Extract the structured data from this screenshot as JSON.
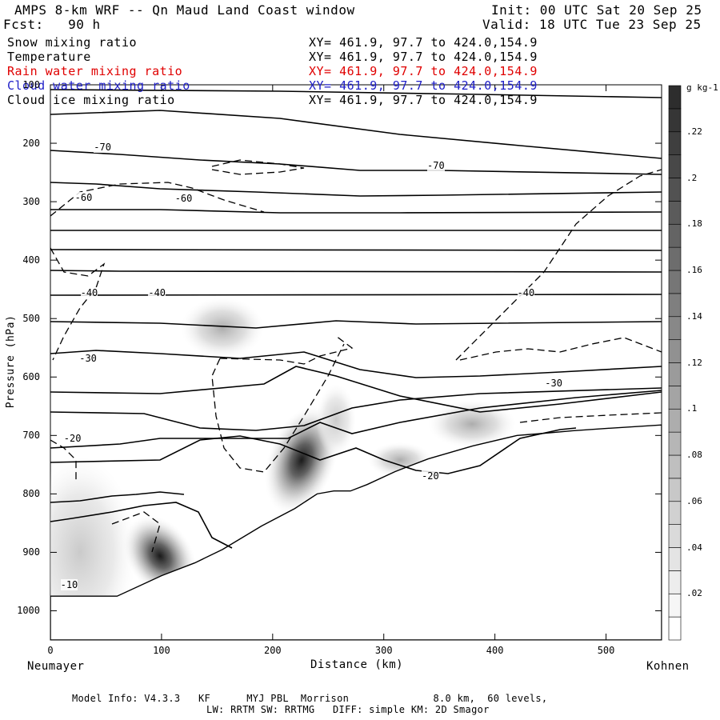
{
  "header": {
    "title": "AMPS 8-km WRF -- Qn Maud Land Coast window",
    "init": "Init: 00 UTC Sat 20 Sep 25",
    "fcst": "Fcst:   90 h",
    "valid": "Valid: 18 UTC Tue 23 Sep 25"
  },
  "legend": [
    {
      "label": "Snow mixing ratio",
      "xy": "XY= 461.9, 97.7 to 424.0,154.9",
      "color": "#000000"
    },
    {
      "label": "Temperature",
      "xy": "XY= 461.9, 97.7 to 424.0,154.9",
      "color": "#000000"
    },
    {
      "label": "Rain water mixing ratio",
      "xy": "XY= 461.9, 97.7 to 424.0,154.9",
      "color": "#e00000"
    },
    {
      "label": "Cloud water mixing ratio",
      "xy": "XY= 461.9, 97.7 to 424.0,154.9",
      "color": "#2020c8"
    },
    {
      "label": "Cloud ice mixing ratio",
      "xy": "XY= 461.9, 97.7 to 424.0,154.9",
      "color": "#000000"
    }
  ],
  "chart_data": {
    "type": "cross-section contour",
    "xlabel": "Distance (km)",
    "ylabel": "Pressure (hPa)",
    "xlim": [
      0,
      550
    ],
    "ylim": [
      1050,
      100
    ],
    "x_ticks": [
      0,
      100,
      200,
      300,
      400,
      500
    ],
    "y_ticks": [
      100,
      200,
      300,
      400,
      500,
      600,
      700,
      800,
      900,
      1000
    ],
    "x_endpoint_labels": {
      "left": "Neumayer",
      "right": "Kohnen"
    },
    "temperature_contour_labels": [
      {
        "text": "-70",
        "x": 47,
        "p": 207
      },
      {
        "text": "-70",
        "x": 347,
        "p": 238
      },
      {
        "text": "-60",
        "x": 30,
        "p": 293
      },
      {
        "text": "-60",
        "x": 120,
        "p": 294
      },
      {
        "text": "-40",
        "x": 35,
        "p": 456
      },
      {
        "text": "-40",
        "x": 96,
        "p": 456
      },
      {
        "text": "-40",
        "x": 428,
        "p": 456
      },
      {
        "text": "-30",
        "x": 34,
        "p": 568
      },
      {
        "text": "-30",
        "x": 453,
        "p": 610
      },
      {
        "text": "-20",
        "x": 20,
        "p": 705
      },
      {
        "text": "-20",
        "x": 342,
        "p": 770
      },
      {
        "text": "-10",
        "x": 17,
        "p": 955
      }
    ],
    "terrain_profile": [
      [
        0,
        975
      ],
      [
        60,
        975
      ],
      [
        100,
        940
      ],
      [
        130,
        918
      ],
      [
        155,
        895
      ],
      [
        190,
        855
      ],
      [
        220,
        825
      ],
      [
        240,
        800
      ],
      [
        255,
        795
      ],
      [
        270,
        795
      ],
      [
        285,
        784
      ],
      [
        310,
        762
      ],
      [
        340,
        740
      ],
      [
        380,
        718
      ],
      [
        420,
        700
      ],
      [
        440,
        697
      ],
      [
        470,
        692
      ],
      [
        500,
        688
      ],
      [
        550,
        682
      ]
    ],
    "snow_shading_maxima": [
      {
        "x": 95,
        "p": 920,
        "value": 0.22
      },
      {
        "x": 228,
        "p": 775,
        "value": 0.22
      },
      {
        "x": 150,
        "p": 510,
        "value": 0.08
      },
      {
        "x": 375,
        "p": 685,
        "value": 0.1
      },
      {
        "x": 10,
        "p": 870,
        "value": 0.06
      }
    ],
    "colorbar": {
      "unit": "g kg-1",
      "tick_labels": [
        ".02",
        ".04",
        ".06",
        ".08",
        ".1",
        ".12",
        ".14",
        ".16",
        ".18",
        ".2",
        ".22"
      ],
      "levels": [
        0.01,
        0.02,
        0.03,
        0.04,
        0.05,
        0.06,
        0.07,
        0.08,
        0.09,
        0.1,
        0.11,
        0.12,
        0.13,
        0.14,
        0.15,
        0.16,
        0.17,
        0.18,
        0.19,
        0.2,
        0.21,
        0.22,
        0.23,
        0.24
      ]
    }
  },
  "footer": {
    "line1": "Model Info: V4.3.3   KF      MYJ PBL  Morrison              8.0 km,  60 levels,",
    "line2": "LW: RRTM SW: RRTMG   DIFF: simple KM: 2D Smagor"
  }
}
